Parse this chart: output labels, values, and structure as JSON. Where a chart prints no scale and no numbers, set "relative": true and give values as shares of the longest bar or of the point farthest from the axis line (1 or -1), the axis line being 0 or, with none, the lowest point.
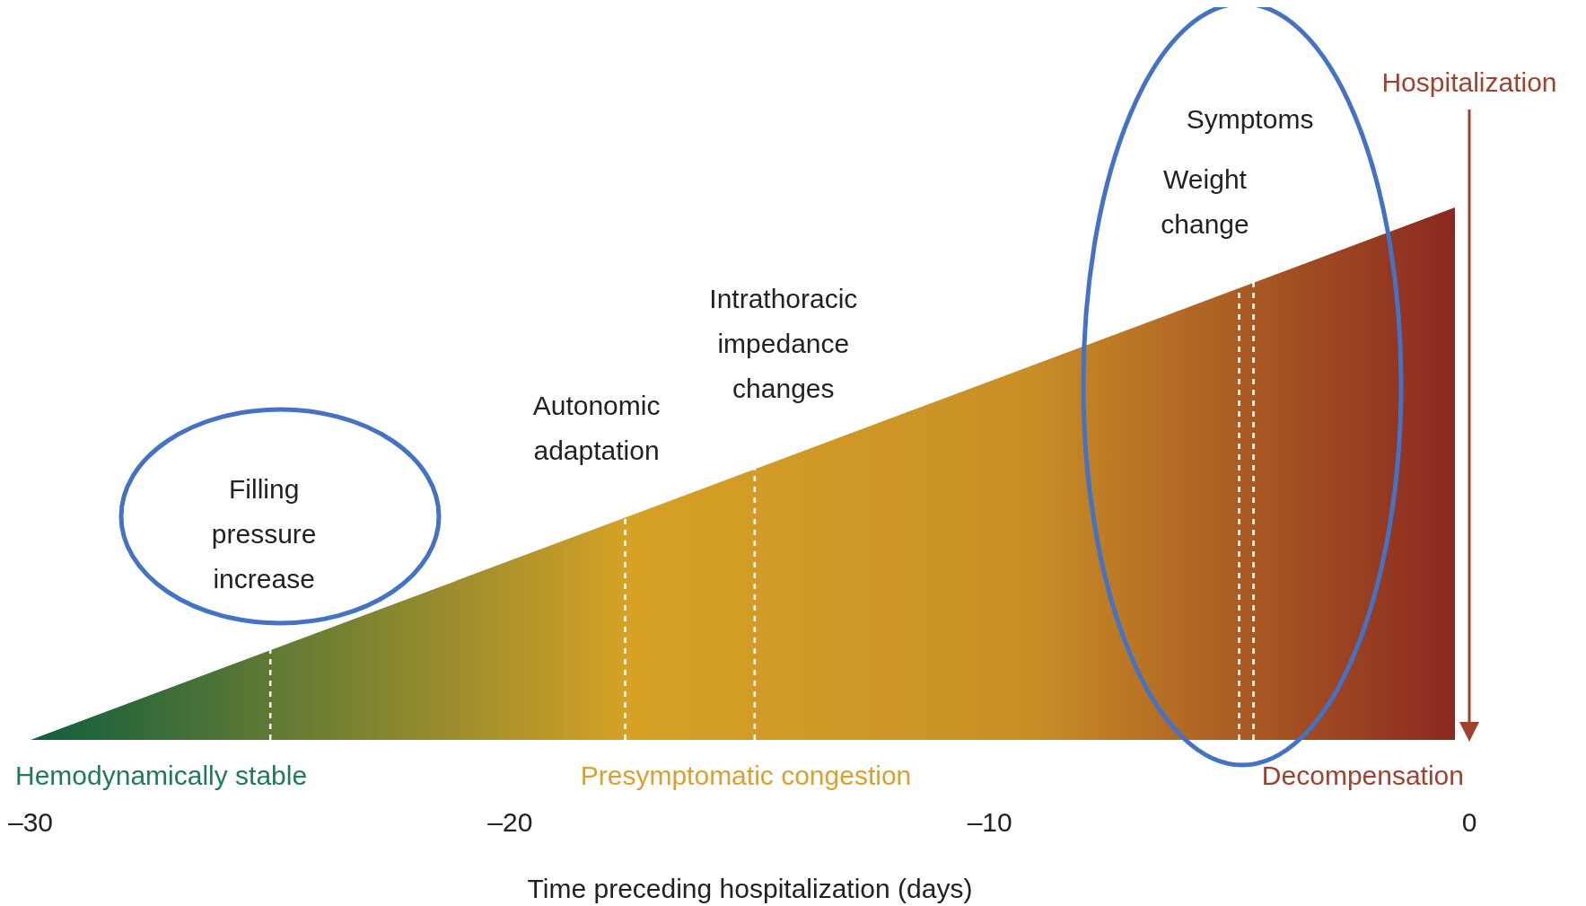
{
  "chart_data": {
    "type": "area",
    "relative": true,
    "xlabel": "Time preceding hospitalization (days)",
    "x": [
      -30,
      -0.3
    ],
    "series": [
      {
        "color": "#c98f26",
        "values": [
          0,
          1
        ]
      }
    ],
    "xlim": [
      -30,
      0
    ],
    "xticks": [
      {
        "value": -30,
        "label": "–30"
      },
      {
        "value": -20,
        "label": "–20"
      },
      {
        "value": -10,
        "label": "–10"
      },
      0
    ],
    "grid": false,
    "legend": false,
    "ref_lines": [
      {
        "axis": "x",
        "value": -25,
        "label": "Filling pressure increase",
        "color": "#ffffff",
        "line_style": "dashed"
      },
      {
        "axis": "x",
        "value": -17.6,
        "label": "Autonomic adaptation",
        "color": "#ffffff",
        "line_style": "dashed"
      },
      {
        "axis": "x",
        "value": -14.9,
        "label": "Intrathoracic impedance changes",
        "color": "#ffffff",
        "line_style": "dashed"
      },
      {
        "axis": "x",
        "value": -4.8,
        "label": "Weight change",
        "color": "#ffffff",
        "line_style": "dashed"
      },
      {
        "axis": "x",
        "value": -4.5,
        "label": "Symptoms",
        "color": "#ffffff",
        "line_style": "dashed"
      },
      {
        "axis": "x",
        "value": 0,
        "label": "Hospitalization",
        "color": "#a0402f",
        "line_style": "solid"
      }
    ],
    "annotations": [
      "Hemodynamically stable",
      "Presymptomatic congestion",
      "Decompensation"
    ]
  }
}
